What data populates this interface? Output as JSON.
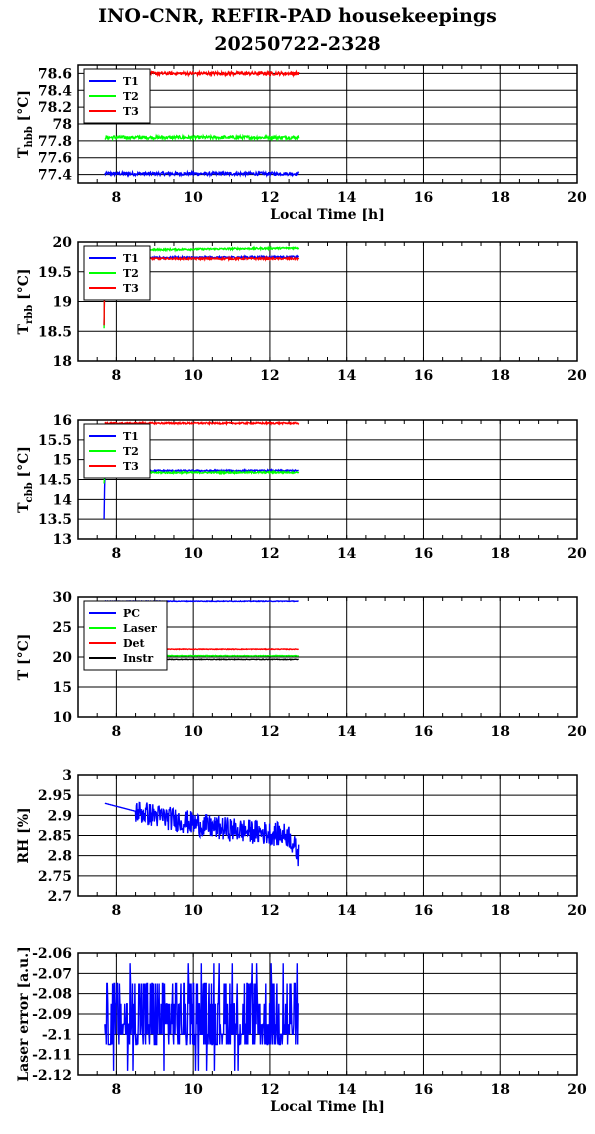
{
  "title": "INO-CNR, REFIR-PAD housekeepings",
  "subtitle": "20250722-2328",
  "chart_data": [
    {
      "type": "line",
      "id": "hbb",
      "ylabel": "T",
      "ylabel_sub": "hbb",
      "ylabel_unit": "[°C]",
      "xlabel": "Local Time [h]",
      "xlim": [
        7,
        20
      ],
      "ylim": [
        77.3,
        78.7
      ],
      "yticks": [
        77.4,
        77.6,
        77.8,
        78,
        78.2,
        78.4,
        78.6
      ],
      "ytick_labels": [
        "77.4",
        "77.6",
        "77.8",
        "78",
        "78.2",
        "78.4",
        "78.6"
      ],
      "xticks": [
        8,
        10,
        12,
        14,
        16,
        18,
        20
      ],
      "grid": true,
      "legend": "top-left",
      "series": [
        {
          "name": "T1",
          "color": "#0000ff",
          "x": [
            7.7,
            12.75
          ],
          "y": [
            77.41,
            77.41
          ],
          "noise": 0.02
        },
        {
          "name": "T2",
          "color": "#00ff00",
          "x": [
            7.7,
            12.75
          ],
          "y": [
            77.84,
            77.84
          ],
          "noise": 0.02
        },
        {
          "name": "T3",
          "color": "#ff0000",
          "x": [
            7.7,
            12.75
          ],
          "y": [
            78.6,
            78.6
          ],
          "noise": 0.02
        }
      ]
    },
    {
      "type": "line",
      "id": "rbb",
      "ylabel": "T",
      "ylabel_sub": "rbb",
      "ylabel_unit": "[°C]",
      "xlabel": "",
      "xlim": [
        7,
        20
      ],
      "ylim": [
        18,
        20
      ],
      "yticks": [
        18,
        18.5,
        19,
        19.5,
        20
      ],
      "ytick_labels": [
        "18",
        "18.5",
        "19",
        "19.5",
        "20"
      ],
      "xticks": [
        8,
        10,
        12,
        14,
        16,
        18,
        20
      ],
      "grid": true,
      "legend": "top-left",
      "series": [
        {
          "name": "T1",
          "color": "#0000ff",
          "x": [
            7.68,
            7.7,
            7.72,
            12.75
          ],
          "y": [
            18.6,
            19.75,
            19.73,
            19.75
          ],
          "noise": 0.015
        },
        {
          "name": "T2",
          "color": "#00ff00",
          "x": [
            7.68,
            7.7,
            7.72,
            12.75
          ],
          "y": [
            18.55,
            19.85,
            19.86,
            19.9
          ],
          "noise": 0.015
        },
        {
          "name": "T3",
          "color": "#ff0000",
          "x": [
            7.68,
            7.7,
            7.72,
            12.75
          ],
          "y": [
            18.6,
            19.75,
            19.72,
            19.72
          ],
          "noise": 0.015
        }
      ]
    },
    {
      "type": "line",
      "id": "cbb",
      "ylabel": "T",
      "ylabel_sub": "cbb",
      "ylabel_unit": "[°C]",
      "xlabel": "",
      "xlim": [
        7,
        20
      ],
      "ylim": [
        13,
        16
      ],
      "yticks": [
        13,
        13.5,
        14,
        14.5,
        15,
        15.5,
        16
      ],
      "ytick_labels": [
        "13",
        "13.5",
        "14",
        "14.5",
        "15",
        "15.5",
        "16"
      ],
      "xticks": [
        8,
        10,
        12,
        14,
        16,
        18,
        20
      ],
      "grid": true,
      "legend": "top-left",
      "series": [
        {
          "name": "T1",
          "color": "#0000ff",
          "x": [
            7.68,
            7.7,
            7.72,
            12.75
          ],
          "y": [
            13.5,
            14.72,
            14.72,
            14.72
          ],
          "noise": 0.02
        },
        {
          "name": "T2",
          "color": "#00ff00",
          "x": [
            7.68,
            7.7,
            7.72,
            12.75
          ],
          "y": [
            14.4,
            14.68,
            14.67,
            14.68
          ],
          "noise": 0.02
        },
        {
          "name": "T3",
          "color": "#ff0000",
          "x": [
            7.7,
            12.75
          ],
          "y": [
            15.92,
            15.92
          ],
          "noise": 0.02
        }
      ]
    },
    {
      "type": "line",
      "id": "temps",
      "ylabel": "T [°C]",
      "ylabel_sub": "",
      "ylabel_unit": "",
      "xlabel": "",
      "xlim": [
        7,
        20
      ],
      "ylim": [
        10,
        30
      ],
      "yticks": [
        10,
        15,
        20,
        25,
        30
      ],
      "ytick_labels": [
        "10",
        "15",
        "20",
        "25",
        "30"
      ],
      "xticks": [
        8,
        10,
        12,
        14,
        16,
        18,
        20
      ],
      "grid": true,
      "legend": "top-left",
      "series": [
        {
          "name": "PC",
          "color": "#0000ff",
          "x": [
            7.7,
            12.75
          ],
          "y": [
            29.3,
            29.3
          ],
          "noise": 0.05
        },
        {
          "name": "Laser",
          "color": "#00ff00",
          "x": [
            7.7,
            12.75
          ],
          "y": [
            20.2,
            20.2
          ],
          "noise": 0.05
        },
        {
          "name": "Det",
          "color": "#ff0000",
          "x": [
            7.7,
            12.75
          ],
          "y": [
            21.3,
            21.3
          ],
          "noise": 0.05
        },
        {
          "name": "Instr",
          "color": "#000000",
          "x": [
            7.7,
            12.75
          ],
          "y": [
            19.6,
            19.6
          ],
          "noise": 0.05
        }
      ]
    },
    {
      "type": "line",
      "id": "rh",
      "ylabel": "RH [%]",
      "ylabel_sub": "",
      "ylabel_unit": "",
      "xlabel": "",
      "xlim": [
        7,
        20
      ],
      "ylim": [
        2.7,
        3
      ],
      "yticks": [
        2.7,
        2.75,
        2.8,
        2.85,
        2.9,
        2.95,
        3
      ],
      "ytick_labels": [
        "2.7",
        "2.75",
        "2.8",
        "2.85",
        "2.9",
        "2.95",
        "3"
      ],
      "xticks": [
        8,
        10,
        12,
        14,
        16,
        18,
        20
      ],
      "grid": true,
      "legend": "none",
      "series": [
        {
          "name": "",
          "color": "#0000ff",
          "x": [
            7.7,
            8.5,
            9.5,
            10.5,
            11.5,
            12.5,
            12.75
          ],
          "y": [
            2.93,
            2.91,
            2.89,
            2.87,
            2.86,
            2.85,
            2.8
          ],
          "noise": 0.03
        }
      ]
    },
    {
      "type": "line",
      "id": "laser",
      "ylabel": "Laser error [a.u.]",
      "ylabel_sub": "",
      "ylabel_unit": "",
      "xlabel": "Local Time [h]",
      "xlim": [
        7,
        20
      ],
      "ylim": [
        -2.12,
        -2.06
      ],
      "yticks": [
        -2.12,
        -2.11,
        -2.1,
        -2.09,
        -2.08,
        -2.07,
        -2.06
      ],
      "ytick_labels": [
        "-2.12",
        "-2.11",
        "-2.1",
        "-2.09",
        "-2.08",
        "-2.07",
        "-2.06"
      ],
      "xticks": [
        8,
        10,
        12,
        14,
        16,
        18,
        20
      ],
      "grid": true,
      "legend": "none",
      "series": [
        {
          "name": "",
          "color": "#0000ff",
          "x": [
            7.7,
            12.75
          ],
          "y": [
            -2.095,
            -2.095
          ],
          "noise": 0.02,
          "levels": [
            -2.105,
            -2.1,
            -2.095,
            -2.085,
            -2.075
          ]
        }
      ]
    }
  ]
}
